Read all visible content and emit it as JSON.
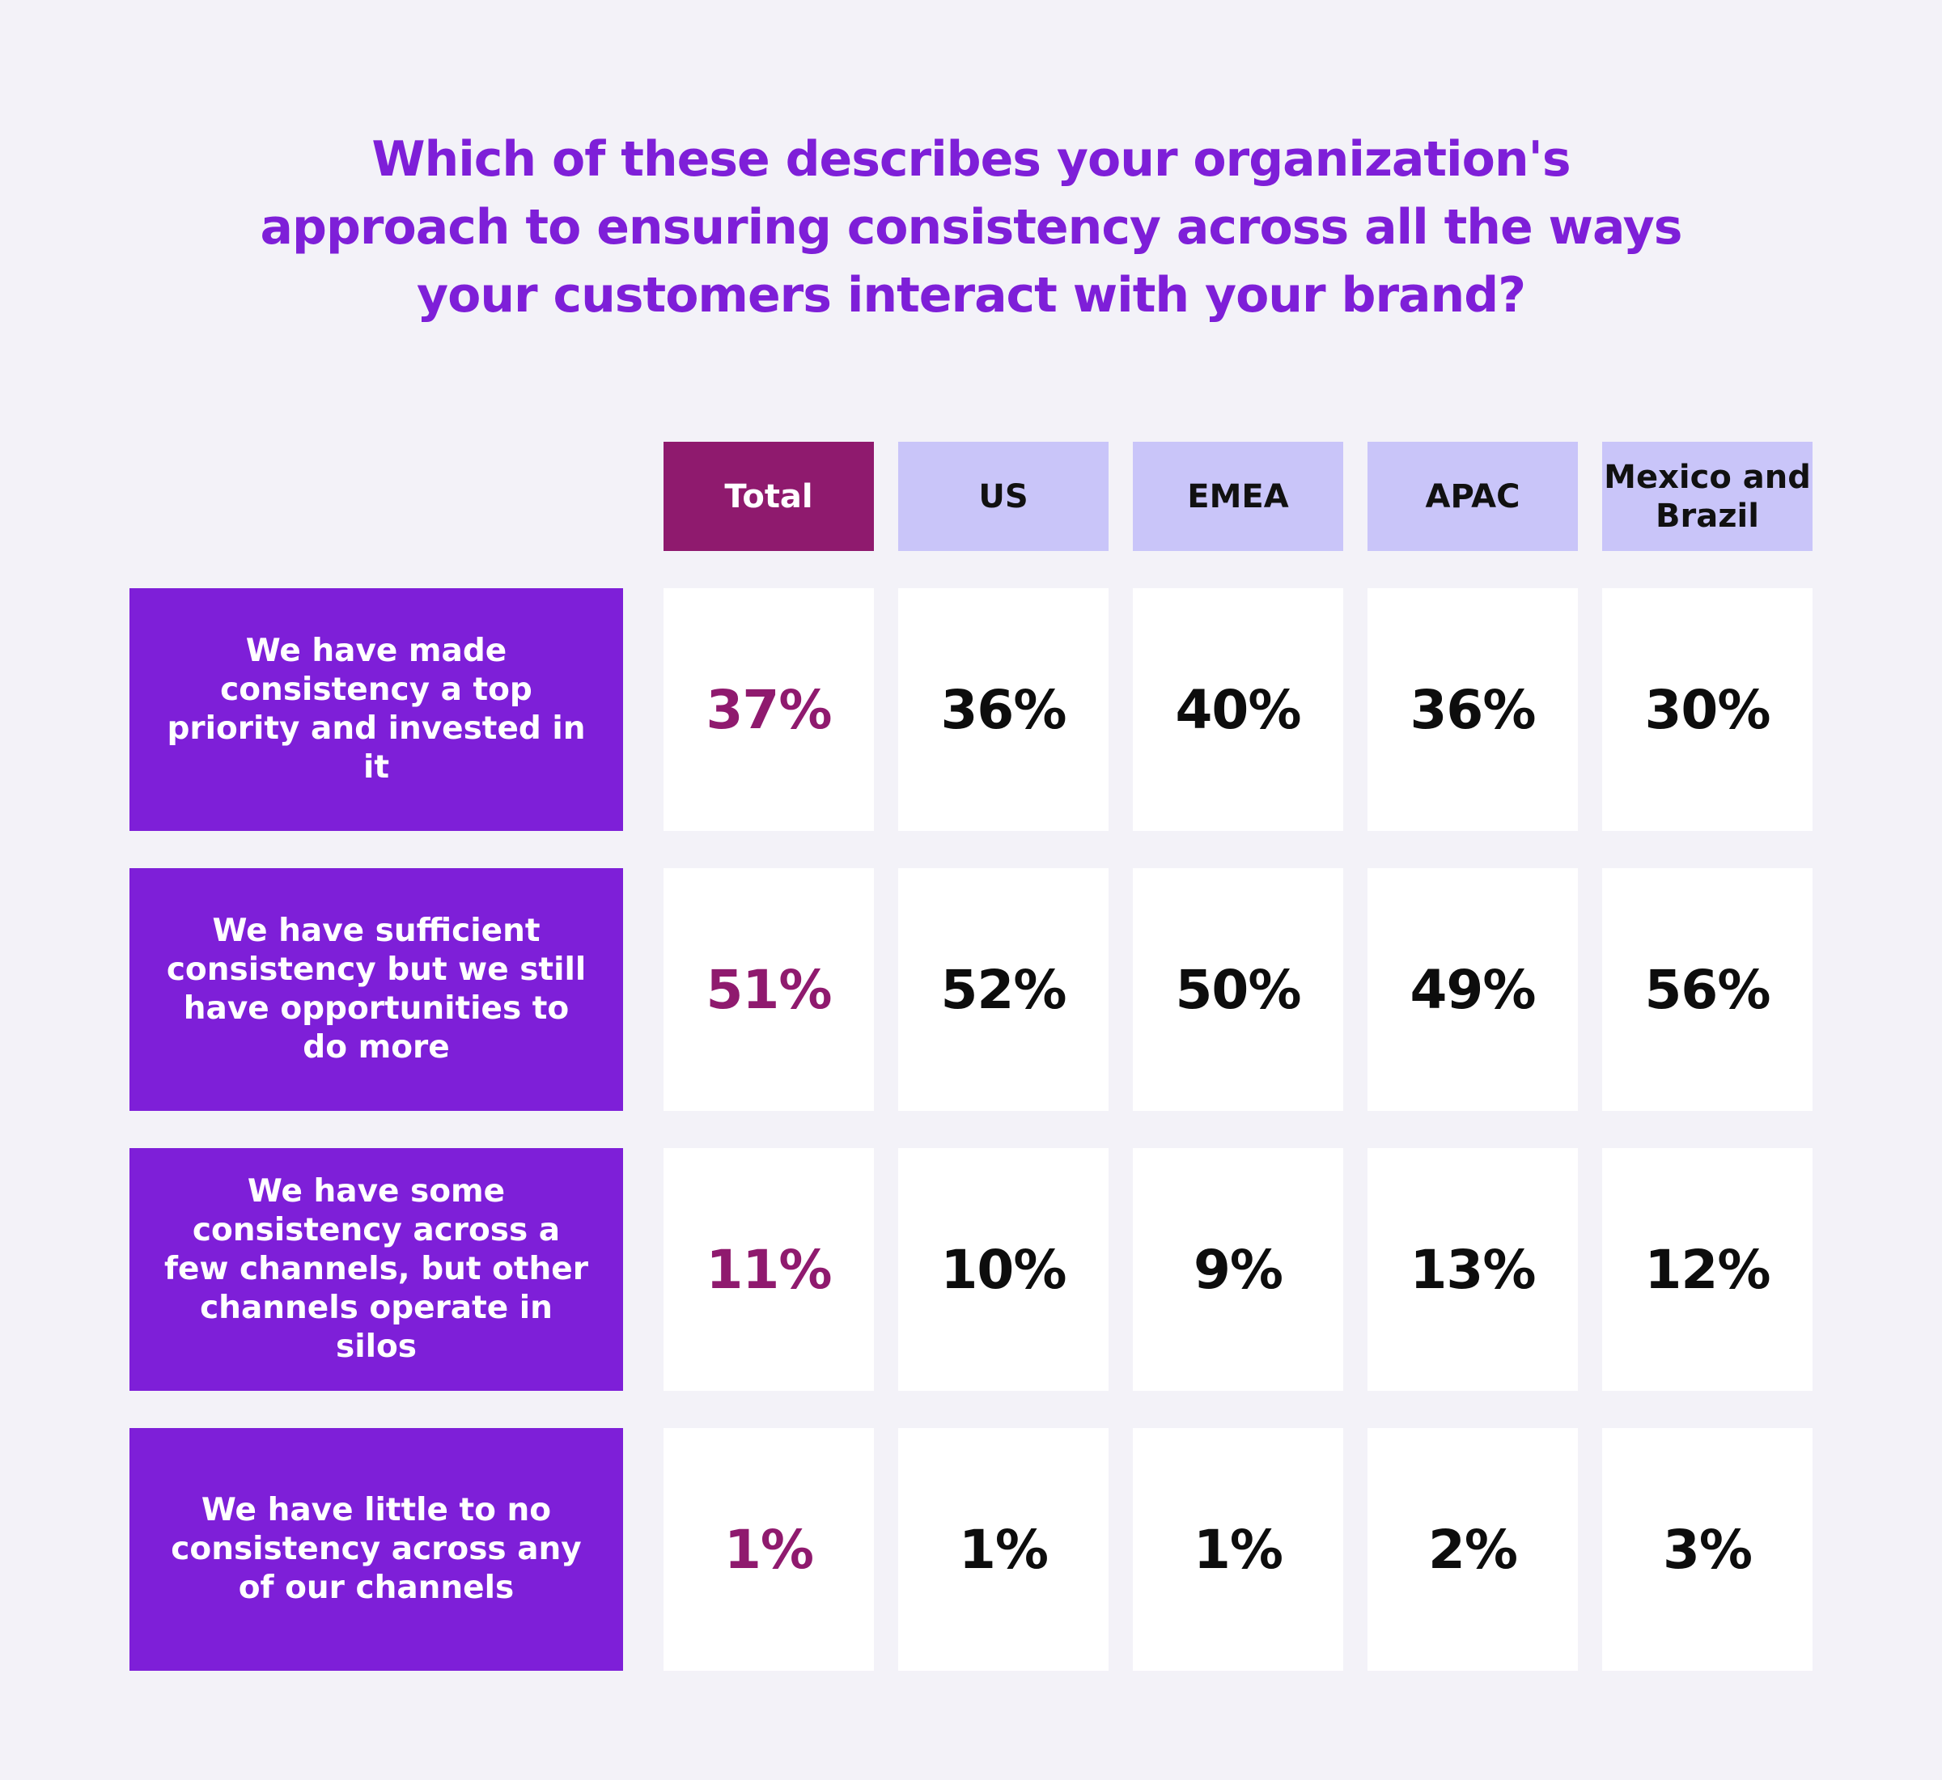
{
  "title_lines": [
    "Which of these describes your organization's",
    "approach to ensuring consistency across all the ways",
    "your customers interact with your brand?"
  ],
  "colors": {
    "background": "#f3f2f8",
    "title": "#7e1fd8",
    "row_header_bg": "#7e1fd8",
    "total_header_bg": "#8f1a6e",
    "total_value": "#8f1a6e",
    "region_header_bg": "#c9c5f9",
    "value_text": "#0d0d0d"
  },
  "chart_data": {
    "type": "table",
    "title": "Which of these describes your organization's approach to ensuring consistency across all the ways your customers interact with your brand?",
    "columns": [
      "Total",
      "US",
      "EMEA",
      "APAC",
      "Mexico and Brazil"
    ],
    "rows": [
      {
        "label": "We have made consistency a top priority and invested in it",
        "values": [
          "37%",
          "36%",
          "40%",
          "36%",
          "30%"
        ]
      },
      {
        "label": "We have sufficient consistency but we still have opportunities to do more",
        "values": [
          "51%",
          "52%",
          "50%",
          "49%",
          "56%"
        ]
      },
      {
        "label": "We have some consistency across a few channels, but other channels operate in silos",
        "values": [
          "11%",
          "10%",
          "9%",
          "13%",
          "12%"
        ]
      },
      {
        "label": "We have little to no consistency across any of our channels",
        "values": [
          "1%",
          "1%",
          "1%",
          "2%",
          "3%"
        ]
      }
    ]
  }
}
